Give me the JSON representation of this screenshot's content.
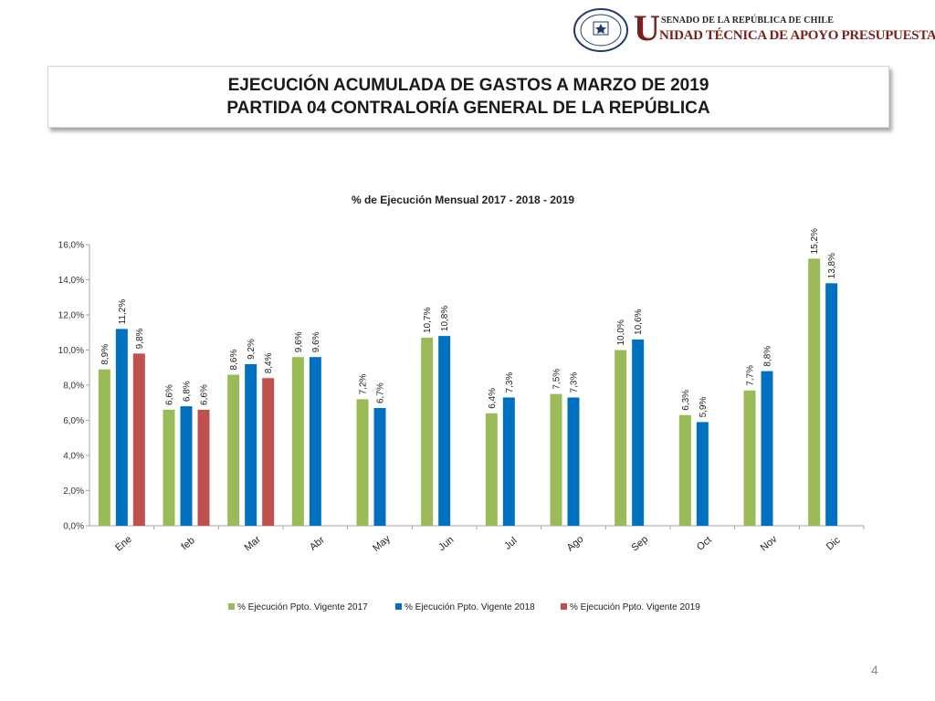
{
  "header": {
    "seal_text_top": "REPÚBLICA DE CHILE",
    "seal_text_bottom": "SENADO",
    "org_initial": "U",
    "org_line1": "SENADO DE LA REPÚBLICA DE CHILE",
    "org_line2": "NIDAD TÉCNICA DE APOYO PRESUPUESTARIO"
  },
  "title": {
    "line1": "EJECUCIÓN ACUMULADA DE GASTOS A MARZO DE 2019",
    "line2": "PARTIDA 04 CONTRALORÍA GENERAL DE LA REPÚBLICA"
  },
  "page_number": "4",
  "chart_data": {
    "type": "bar",
    "title": "% de Ejecución Mensual 2017 - 2018 - 2019",
    "categories": [
      "Ene",
      "feb",
      "Mar",
      "Abr",
      "May",
      "Jun",
      "Jul",
      "Ago",
      "Sep",
      "Oct",
      "Nov",
      "Dic"
    ],
    "series": [
      {
        "name": "% Ejecución Ppto. Vigente 2017",
        "color": "#9bbb59",
        "values": [
          8.9,
          6.6,
          8.6,
          9.6,
          7.2,
          10.7,
          6.4,
          7.5,
          10.0,
          6.3,
          7.7,
          15.2
        ],
        "labels": [
          "8,9%",
          "6,6%",
          "8,6%",
          "9,6%",
          "7,2%",
          "10,7%",
          "6,4%",
          "7,5%",
          "10,0%",
          "6,3%",
          "7,7%",
          "15,2%"
        ]
      },
      {
        "name": "% Ejecución Ppto. Vigente 2018",
        "color": "#0070c0",
        "values": [
          11.2,
          6.8,
          9.2,
          9.6,
          6.7,
          10.8,
          7.3,
          7.3,
          10.6,
          5.9,
          8.8,
          13.8
        ],
        "labels": [
          "11,2%",
          "6,8%",
          "9,2%",
          "9,6%",
          "6,7%",
          "10,8%",
          "7,3%",
          "7,3%",
          "10,6%",
          "5,9%",
          "8,8%",
          "13,8%"
        ]
      },
      {
        "name": "% Ejecución Ppto. Vigente 2019",
        "color": "#c0504d",
        "values": [
          9.8,
          6.6,
          8.4,
          null,
          null,
          null,
          null,
          null,
          null,
          null,
          null,
          null
        ],
        "labels": [
          "9,8%",
          "6,6%",
          "8,4%",
          "",
          "",
          "",
          "",
          "",
          "",
          "",
          "",
          ""
        ]
      }
    ],
    "ylim": [
      0,
      16
    ],
    "yticks": [
      0,
      2,
      4,
      6,
      8,
      10,
      12,
      14,
      16
    ],
    "ytick_labels": [
      "0,0%",
      "2,0%",
      "4,0%",
      "6,0%",
      "8,0%",
      "10,0%",
      "12,0%",
      "14,0%",
      "16,0%"
    ],
    "grid": false,
    "legend_position": "bottom"
  }
}
